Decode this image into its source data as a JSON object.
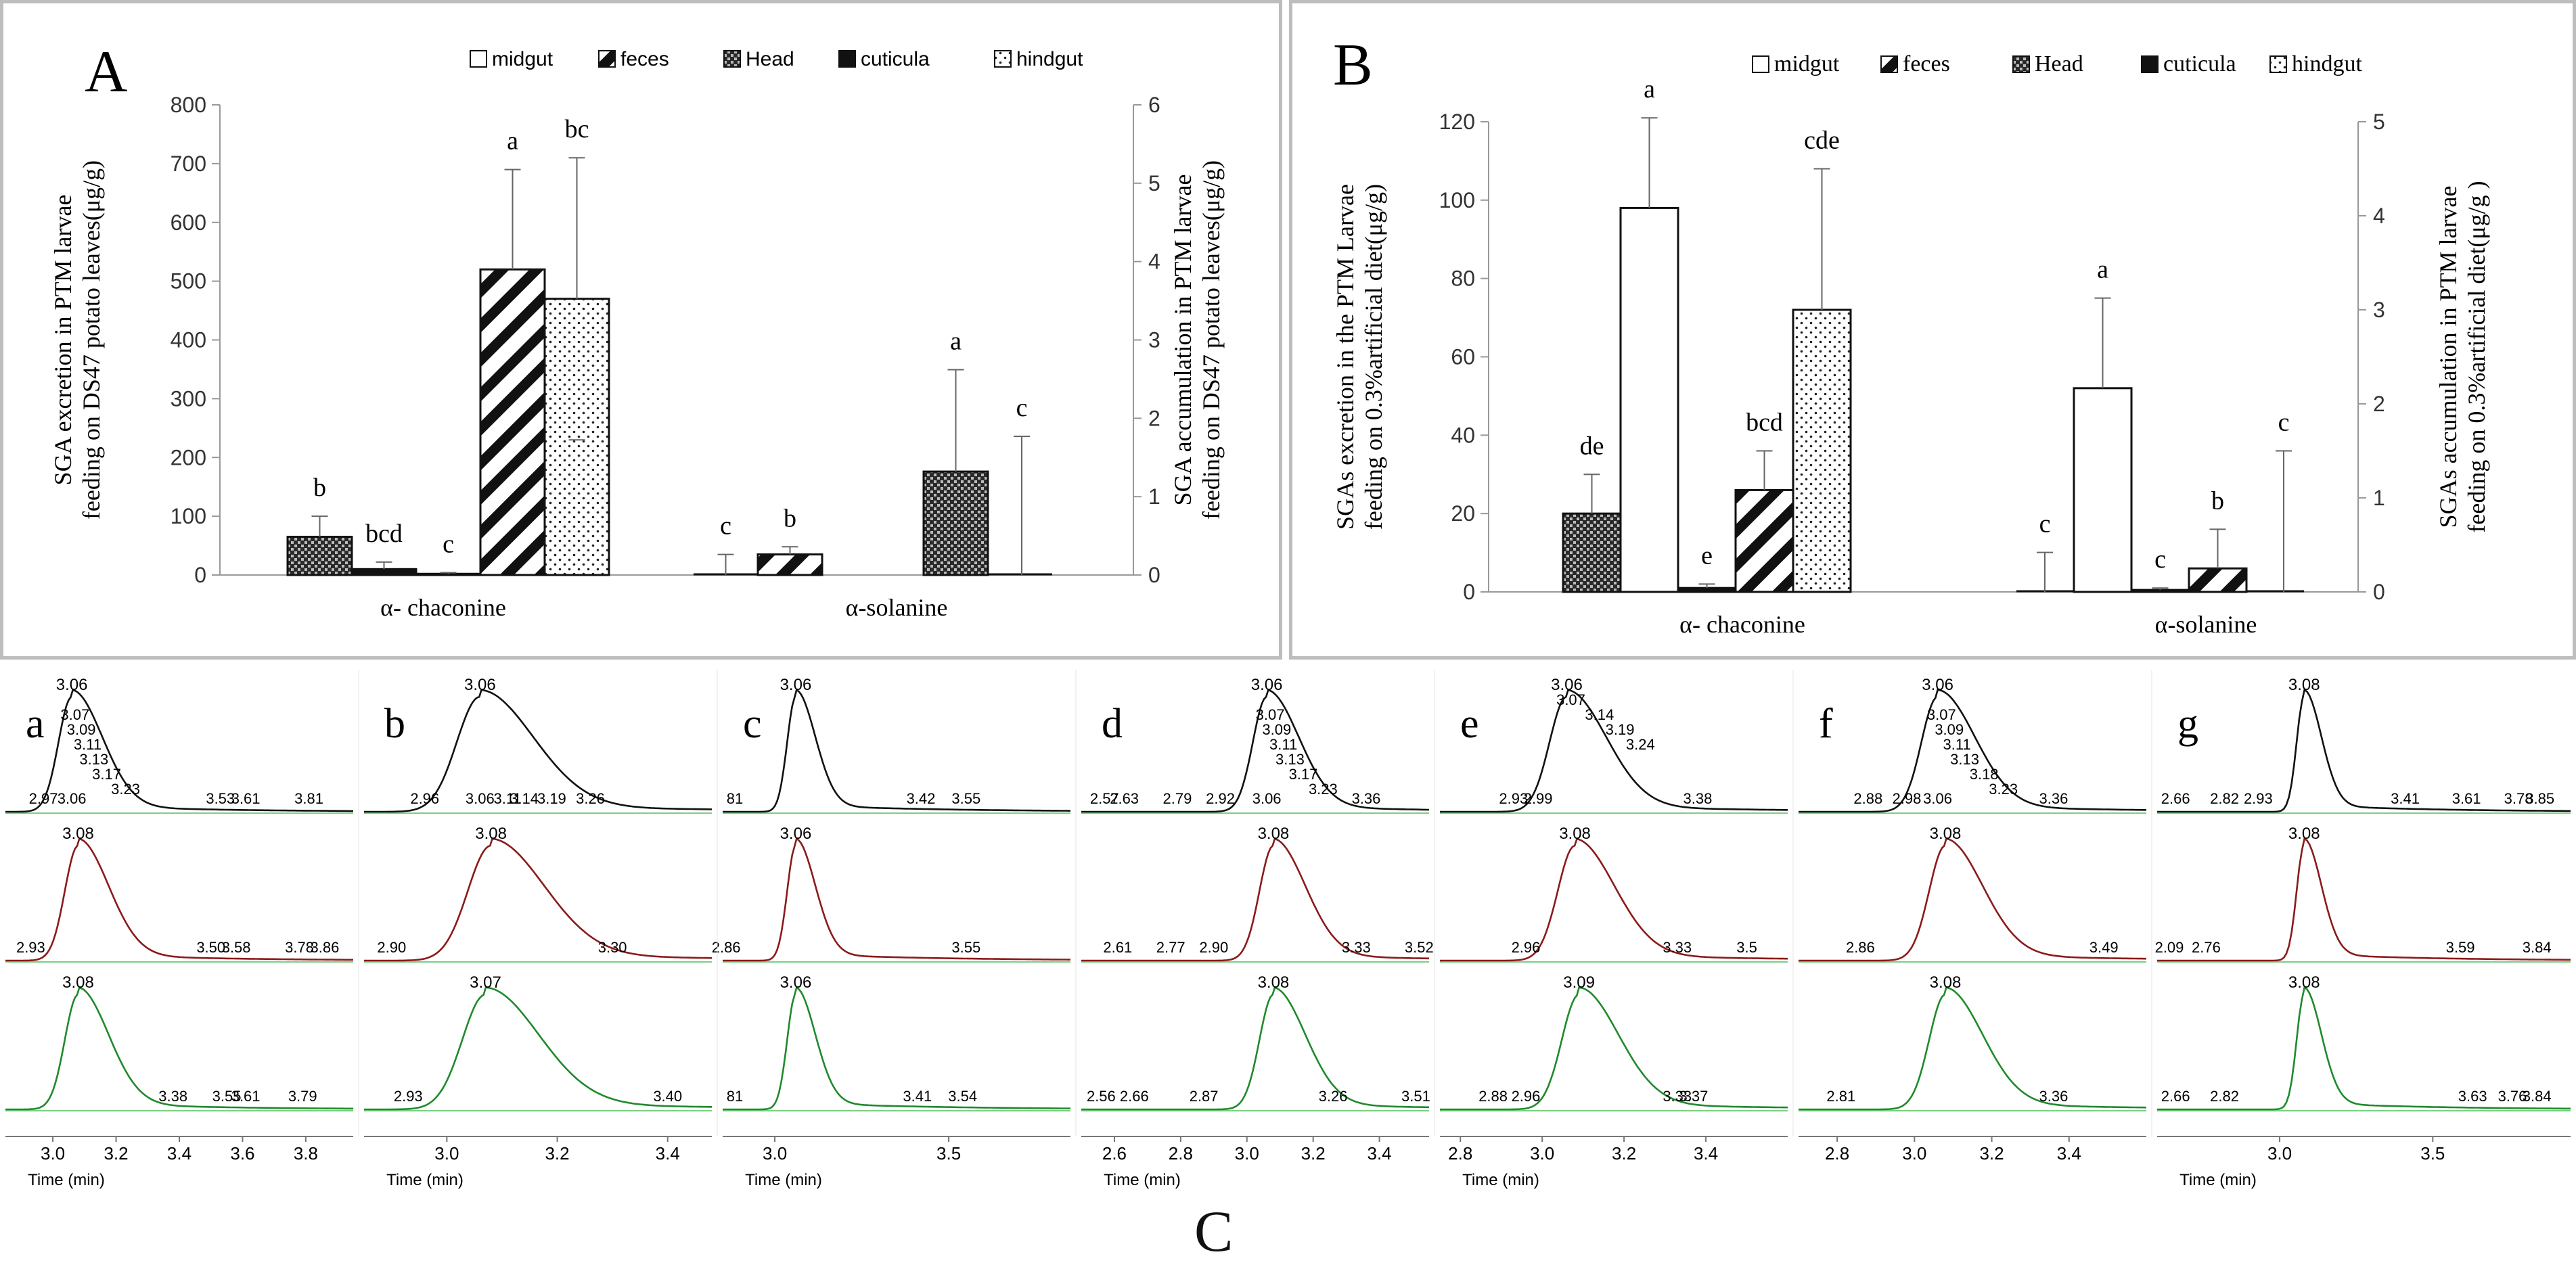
{
  "figure": {
    "panel_letters": {
      "A": "A",
      "B": "B",
      "C": "C"
    }
  },
  "legend_entries": [
    "midgut",
    "feces",
    "Head",
    "cuticula",
    "hindgut"
  ],
  "chart_data": [
    {
      "type": "bar",
      "panel": "A",
      "categories": [
        "α- chaconine",
        "α-solanine"
      ],
      "series": [
        {
          "name": "Head",
          "values": [
            65,
            null
          ],
          "errors": [
            35,
            null
          ],
          "letters": [
            "b",
            ""
          ],
          "axis": "left"
        },
        {
          "name": "cuticula",
          "values": [
            10,
            null
          ],
          "errors": [
            12,
            null
          ],
          "letters": [
            "bcd",
            ""
          ],
          "axis": "left"
        },
        {
          "name": "midgut",
          "values": [
            2,
            0
          ],
          "errors": [
            2,
            35
          ],
          "letters": [
            "c",
            "c"
          ],
          "axis": "left"
        },
        {
          "name": "feces",
          "values": [
            520,
            35
          ],
          "errors": [
            170,
            13
          ],
          "letters": [
            "a",
            "b"
          ],
          "axis": "left"
        },
        {
          "name": "hindgut",
          "values": [
            470,
            null
          ],
          "errors": [
            240,
            null
          ],
          "letters": [
            "bc",
            "c"
          ],
          "axis": "left"
        },
        {
          "name": "Head",
          "values": [
            null,
            1.32
          ],
          "errors": [
            null,
            1.3
          ],
          "letters": [
            "",
            "a"
          ],
          "axis": "right"
        },
        {
          "name": "hindgut",
          "values": [
            null,
            0
          ],
          "errors": [
            null,
            1.77
          ],
          "letters": [
            "",
            "c"
          ],
          "axis": "right"
        }
      ],
      "ylabel": "SGA  excretion in PTM larvae feeding on DS47 potato leaves(μg/g)",
      "y2label": "SGA  accumulation in PTM larvae feeding on DS47 potato leaves(μg/g)",
      "ylim": [
        0,
        800
      ],
      "yticks": [
        "0",
        "100",
        "200",
        "300",
        "400",
        "500",
        "600",
        "700",
        "800"
      ],
      "y2lim": [
        0,
        6
      ],
      "y2ticks": [
        "0",
        "1",
        "2",
        "3",
        "4",
        "5",
        "6"
      ]
    },
    {
      "type": "bar",
      "panel": "B",
      "categories": [
        "α- chaconine",
        "α-solanine"
      ],
      "series": [
        {
          "name": "Head",
          "values": [
            20,
            null
          ],
          "errors": [
            10,
            null
          ],
          "letters": [
            "de",
            ""
          ],
          "axis": "left"
        },
        {
          "name": "midgut",
          "values": [
            98,
            52
          ],
          "errors": [
            23,
            23
          ],
          "letters": [
            "a",
            "a"
          ],
          "axis": "left"
        },
        {
          "name": "cuticula",
          "values": [
            1,
            0.5
          ],
          "errors": [
            1,
            0.5
          ],
          "letters": [
            "e",
            "c"
          ],
          "axis": "left"
        },
        {
          "name": "feces",
          "values": [
            26,
            6
          ],
          "errors": [
            10,
            10
          ],
          "letters": [
            "bcd",
            "b"
          ],
          "axis": "left"
        },
        {
          "name": "hindgut",
          "values": [
            72,
            null
          ],
          "errors": [
            36,
            null
          ],
          "letters": [
            "cde",
            ""
          ],
          "axis": "left"
        },
        {
          "name": "midgut (accumulation)",
          "values": [
            null,
            0
          ],
          "errors": [
            null,
            0.42
          ],
          "letters": [
            "",
            "c"
          ],
          "axis": "right"
        },
        {
          "name": "hindgut (accumulation)",
          "values": [
            null,
            0
          ],
          "errors": [
            null,
            1.5
          ],
          "letters": [
            "",
            "c"
          ],
          "axis": "right"
        }
      ],
      "ylabel": "SGAs excretion in the PTM Larvae feeding on 0.3%artificial diet(μg/g)",
      "y2label": "SGAs accumulation in PTM larvae feeding on 0.3%artificial diet(μg/g )",
      "ylim": [
        0,
        120
      ],
      "yticks": [
        "0",
        "20",
        "40",
        "60",
        "80",
        "100",
        "120"
      ],
      "y2lim": [
        0,
        5
      ],
      "y2ticks": [
        "0",
        "1",
        "2",
        "3",
        "4",
        "5"
      ]
    },
    {
      "type": "line",
      "panel": "C",
      "panels": [
        {
          "letter": "a",
          "rows": [
            {
              "peak": 3.06,
              "labels": [
                "3.06",
                "3.06",
                "3.07",
                "3.09",
                "3.11",
                "3.13",
                "3.17",
                "3.23",
                "3.53",
                "3.61",
                "3.81",
                "2.97"
              ]
            },
            {
              "peak": 3.08,
              "labels": [
                "3.08",
                "2.93",
                "3.50",
                "3.58",
                "3.78",
                "3.86"
              ]
            },
            {
              "peak": 3.08,
              "labels": [
                "3.08",
                "3.38",
                "3.55",
                "3.61",
                "3.79"
              ]
            }
          ],
          "xticks": [
            "3.0",
            "3.2",
            "3.4",
            "3.6",
            "3.8"
          ],
          "xlabel": "Time (min)"
        },
        {
          "letter": "b",
          "rows": [
            {
              "peak": 3.06,
              "labels": [
                "3.06",
                "3.06",
                "3.11",
                "3.14",
                "3.19",
                "3.26",
                "2.96"
              ]
            },
            {
              "peak": 3.08,
              "labels": [
                "3.08",
                "2.90",
                "3.30"
              ]
            },
            {
              "peak": 3.07,
              "labels": [
                "3.07",
                "2.93",
                "3.40"
              ]
            }
          ],
          "xticks": [
            "3.0",
            "3.2",
            "3.4"
          ],
          "xlabel": "Time (min)"
        },
        {
          "letter": "c",
          "rows": [
            {
              "peak": 3.06,
              "labels": [
                "3.06",
                "81",
                "3.42",
                "3.55"
              ]
            },
            {
              "peak": 3.06,
              "labels": [
                "3.06",
                "2.86",
                "3.55"
              ]
            },
            {
              "peak": 3.06,
              "labels": [
                "3.06",
                "81",
                "3.41",
                "3.54"
              ]
            }
          ],
          "xticks": [
            "3.0",
            "3.5"
          ],
          "xlabel": "Time (min)"
        },
        {
          "letter": "d",
          "rows": [
            {
              "peak": 3.06,
              "labels": [
                "3.06",
                "3.06",
                "3.07",
                "3.09",
                "3.11",
                "3.13",
                "3.17",
                "3.23",
                "3.36",
                "2.57",
                "2.63",
                "2.79",
                "2.92"
              ]
            },
            {
              "peak": 3.08,
              "labels": [
                "3.08",
                "2.61",
                "2.77",
                "2.90",
                "3.33",
                "3.52"
              ]
            },
            {
              "peak": 3.08,
              "labels": [
                "3.08",
                "2.56",
                "2.66",
                "2.87",
                "3.26",
                "3.51"
              ]
            }
          ],
          "xticks": [
            "2.6",
            "2.8",
            "3.0",
            "3.2",
            "3.4"
          ],
          "xlabel": "Time (min)"
        },
        {
          "letter": "e",
          "rows": [
            {
              "peak": 3.06,
              "labels": [
                "3.06",
                "3.07",
                "3.14",
                "3.19",
                "3.24",
                "3.38",
                "2.93",
                "2.99"
              ]
            },
            {
              "peak": 3.08,
              "labels": [
                "3.08",
                "2.96",
                "3.33",
                "3.5"
              ]
            },
            {
              "peak": 3.09,
              "labels": [
                "3.09",
                "2.88",
                "2.96",
                "3.33",
                "3.37"
              ]
            }
          ],
          "xticks": [
            "2.8",
            "3.0",
            "3.2",
            "3.4"
          ],
          "xlabel": "Time (min)"
        },
        {
          "letter": "f",
          "rows": [
            {
              "peak": 3.06,
              "labels": [
                "3.06",
                "3.06",
                "3.07",
                "3.09",
                "3.11",
                "3.13",
                "3.18",
                "3.23",
                "3.36",
                "2.88",
                "2.98"
              ]
            },
            {
              "peak": 3.08,
              "labels": [
                "3.08",
                "2.86",
                "3.49"
              ]
            },
            {
              "peak": 3.08,
              "labels": [
                "3.08",
                "2.81",
                "3.36"
              ]
            }
          ],
          "xticks": [
            "2.8",
            "3.0",
            "3.2",
            "3.4"
          ],
          "xlabel": ""
        },
        {
          "letter": "g",
          "rows": [
            {
              "peak": 3.08,
              "labels": [
                "3.08",
                "2.66",
                "2.82",
                "2.93",
                "3.41",
                "3.61",
                "3.78",
                "3.85"
              ]
            },
            {
              "peak": 3.08,
              "labels": [
                "3.08",
                "2.76",
                "2.09",
                "3.59",
                "3.84"
              ]
            },
            {
              "peak": 3.08,
              "labels": [
                "3.08",
                "2.66",
                "2.82",
                "3.63",
                "3.76",
                "3.84"
              ]
            }
          ],
          "xticks": [
            "3.0",
            "3.5"
          ],
          "xlabel": "Time (min)"
        }
      ]
    }
  ],
  "colors": {
    "trace_row1": "#111111",
    "trace_row2": "#8b1a1a",
    "trace_row3": "#1f8a2c",
    "marker_green": "#4fc05a",
    "panel_border": "#bdbdbd"
  }
}
